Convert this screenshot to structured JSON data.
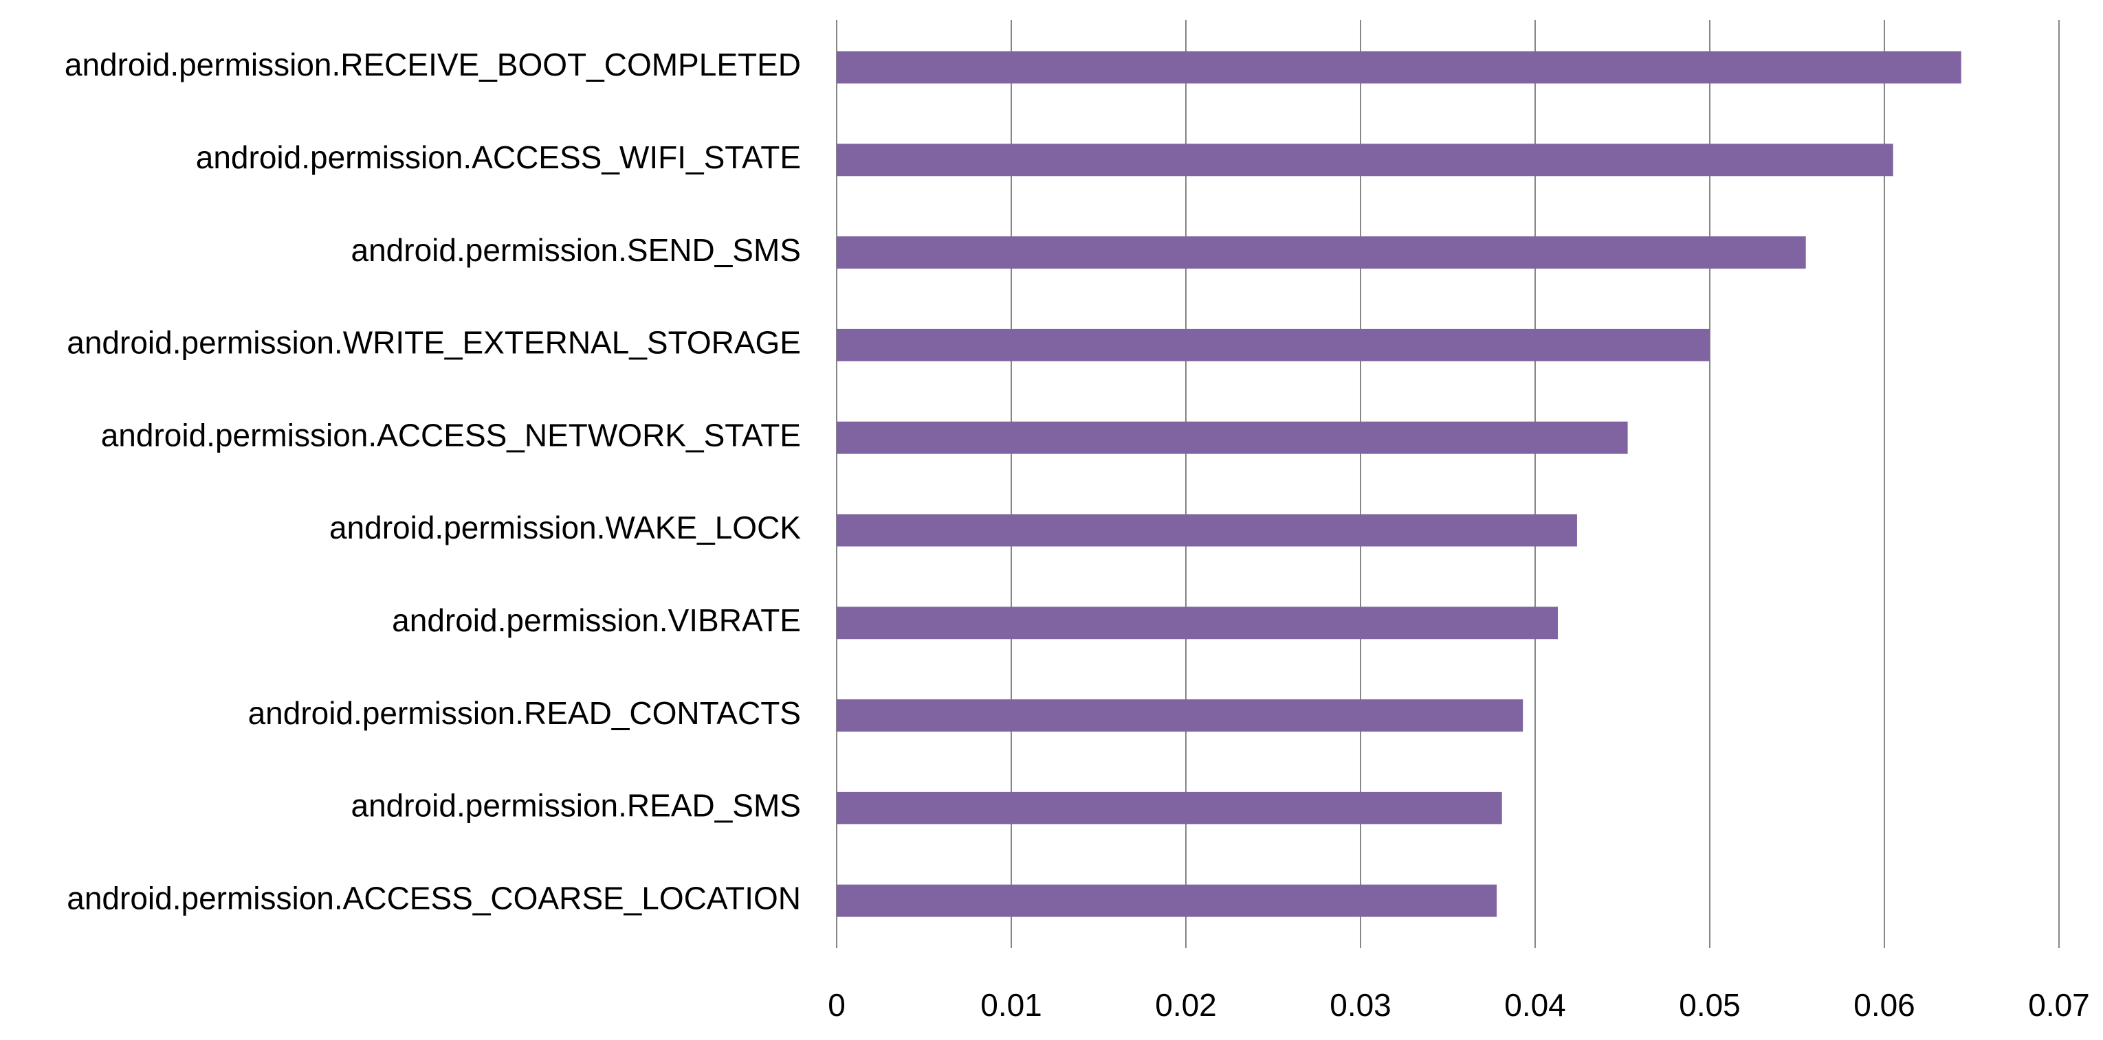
{
  "chart_data": {
    "type": "bar",
    "orientation": "horizontal",
    "categories": [
      "android.permission.RECEIVE_BOOT_COMPLETED",
      "android.permission.ACCESS_WIFI_STATE",
      "android.permission.SEND_SMS",
      "android.permission.WRITE_EXTERNAL_STORAGE",
      "android.permission.ACCESS_NETWORK_STATE",
      "android.permission.WAKE_LOCK",
      "android.permission.VIBRATE",
      "android.permission.READ_CONTACTS",
      "android.permission.READ_SMS",
      "android.permission.ACCESS_COARSE_LOCATION"
    ],
    "values": [
      0.0644,
      0.0605,
      0.0555,
      0.05,
      0.0453,
      0.0424,
      0.0413,
      0.0393,
      0.0381,
      0.0378
    ],
    "color": "#8064a2",
    "xlim": [
      0,
      0.07
    ],
    "xticks": [
      0,
      0.01,
      0.02,
      0.03,
      0.04,
      0.05,
      0.06,
      0.07
    ],
    "grid": true
  }
}
